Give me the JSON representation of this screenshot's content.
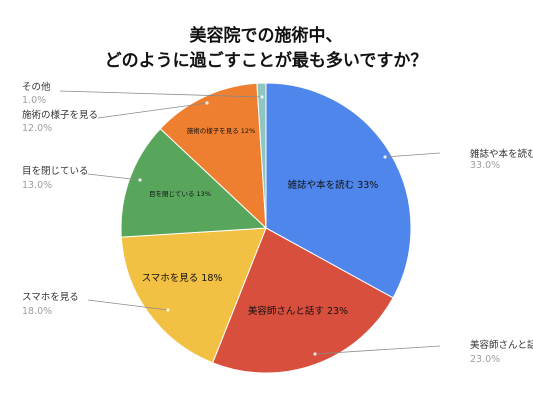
{
  "chart_data": {
    "type": "pie",
    "title_lines": [
      "美容院での施術中、",
      "どのように過ごすことが最も多いですか？"
    ],
    "slices": [
      {
        "label": "雑誌や本を読む",
        "value": 33.0,
        "inner_label": "雑誌や本を読む 33%",
        "outer_value": "33.0%",
        "color": "#4f86ec"
      },
      {
        "label": "美容師さんと話す",
        "value": 23.0,
        "inner_label": "美容師さんと話す 23%",
        "outer_value": "23.0%",
        "color": "#d94f3d"
      },
      {
        "label": "スマホを見る",
        "value": 18.0,
        "inner_label": "スマホを見る 18%",
        "outer_value": "18.0%",
        "color": "#f2c042"
      },
      {
        "label": "目を閉じている",
        "value": 13.0,
        "inner_label": "目を閉じている 13%",
        "outer_value": "13.0%",
        "color": "#58a55c"
      },
      {
        "label": "施術の様子を見る",
        "value": 12.0,
        "inner_label": "施術の様子を見る 12%",
        "outer_value": "12.0%",
        "color": "#ee7f30"
      },
      {
        "label": "その他",
        "value": 1.0,
        "inner_label": "",
        "outer_value": "1.0%",
        "color": "#8fc7c0"
      }
    ],
    "colors": {
      "title": "#111111",
      "label": "#333333",
      "value": "#9e9e9e",
      "leader": "#8a8a8a"
    }
  }
}
